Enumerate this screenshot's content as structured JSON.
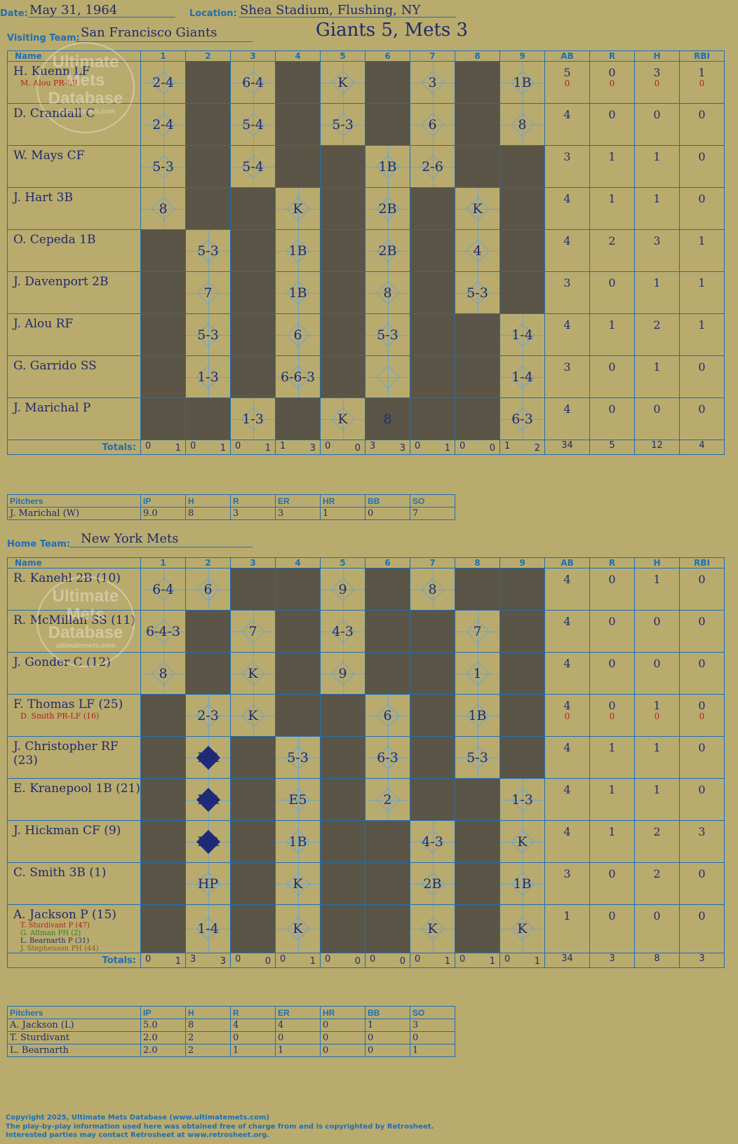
{
  "header": {
    "date_label": "Date:",
    "date": "May 31, 1964",
    "location_label": "Location:",
    "location": "Shea Stadium, Flushing, NY",
    "result": "Giants 5, Mets 3"
  },
  "visiting": {
    "team_label": "Visiting Team:",
    "team": "San Francisco Giants",
    "columns": [
      "Name",
      "1",
      "2",
      "3",
      "4",
      "5",
      "6",
      "7",
      "8",
      "9",
      "AB",
      "R",
      "H",
      "RBI"
    ],
    "players": [
      {
        "name": "H. Kuenn LF",
        "sub": "M. Alou PR-LF",
        "innings": [
          "2-4",
          "",
          "6-4",
          "",
          "K",
          "",
          "3",
          "",
          "1B"
        ],
        "dark": [
          2,
          4,
          6,
          8
        ],
        "stats": [
          "5",
          "0",
          "3",
          "1"
        ],
        "sub_stats": [
          "0",
          "0",
          "0",
          "0"
        ]
      },
      {
        "name": "D. Crandall C",
        "sub": "",
        "innings": [
          "2-4",
          "",
          "5-4",
          "",
          "5-3",
          "",
          "6",
          "",
          "8"
        ],
        "dark": [
          2,
          4,
          6,
          8
        ],
        "stats": [
          "4",
          "0",
          "0",
          "0"
        ]
      },
      {
        "name": "W. Mays CF",
        "sub": "",
        "innings": [
          "5-3",
          "",
          "5-4",
          "",
          "",
          "1B",
          "2-6",
          "",
          ""
        ],
        "dark": [
          2,
          4,
          5,
          8,
          9
        ],
        "stats": [
          "3",
          "1",
          "1",
          "0"
        ]
      },
      {
        "name": "J. Hart 3B",
        "sub": "",
        "innings": [
          "8",
          "",
          "",
          "K",
          "",
          "2B",
          "",
          "K",
          ""
        ],
        "dark": [
          2,
          3,
          5,
          7,
          9
        ],
        "stats": [
          "4",
          "1",
          "1",
          "0"
        ]
      },
      {
        "name": "O. Cepeda 1B",
        "sub": "",
        "innings": [
          "",
          "5-3",
          "",
          "1B",
          "",
          "2B",
          "",
          "4",
          ""
        ],
        "dark": [
          1,
          3,
          5,
          7,
          9
        ],
        "stats": [
          "4",
          "2",
          "3",
          "1"
        ]
      },
      {
        "name": "J. Davenport 2B",
        "sub": "",
        "innings": [
          "",
          "7",
          "",
          "1B",
          "",
          "8",
          "",
          "5-3",
          ""
        ],
        "dark": [
          1,
          3,
          5,
          7,
          9
        ],
        "stats": [
          "3",
          "0",
          "1",
          "1"
        ]
      },
      {
        "name": "J. Alou RF",
        "sub": "",
        "innings": [
          "",
          "5-3",
          "",
          "6",
          "",
          "5-3",
          "",
          "",
          "1-4"
        ],
        "dark": [
          1,
          3,
          5,
          7,
          8
        ],
        "stats": [
          "4",
          "1",
          "2",
          "1"
        ]
      },
      {
        "name": "G. Garrido SS",
        "sub": "",
        "innings": [
          "",
          "1-3",
          "",
          "6-6-3",
          "",
          "",
          "",
          "",
          "1-4"
        ],
        "dark": [
          1,
          3,
          5,
          7,
          8
        ],
        "stats": [
          "3",
          "0",
          "1",
          "0"
        ]
      },
      {
        "name": "J. Marichal P",
        "sub": "",
        "innings": [
          "",
          "",
          "1-3",
          "",
          "K",
          "8",
          "",
          "",
          "6-3"
        ],
        "dark": [
          1,
          2,
          4,
          6,
          7,
          8
        ],
        "stats": [
          "4",
          "0",
          "0",
          "0"
        ]
      }
    ],
    "totals_label": "Totals:",
    "totals": [
      [
        "0",
        "1"
      ],
      [
        "0",
        "1"
      ],
      [
        "0",
        "1"
      ],
      [
        "1",
        "3"
      ],
      [
        "0",
        "0"
      ],
      [
        "3",
        "3"
      ],
      [
        "0",
        "1"
      ],
      [
        "0",
        "0"
      ],
      [
        "1",
        "2"
      ]
    ],
    "totals_stats": [
      "34",
      "5",
      "12",
      "4"
    ],
    "pitch_cols": [
      "Pitchers",
      "IP",
      "H",
      "R",
      "ER",
      "HR",
      "BB",
      "SO"
    ],
    "pitchers": [
      [
        "J. Marichal (W)",
        "9.0",
        "8",
        "3",
        "3",
        "1",
        "0",
        "7"
      ]
    ]
  },
  "home": {
    "team_label": "Home Team:",
    "team": "New York Mets",
    "columns": [
      "Name",
      "1",
      "2",
      "3",
      "4",
      "5",
      "6",
      "7",
      "8",
      "9",
      "AB",
      "R",
      "H",
      "RBI"
    ],
    "players": [
      {
        "name": "R. Kanehl 2B (10)",
        "sub": "",
        "innings": [
          "6-4",
          "6",
          "",
          "",
          "9",
          "",
          "8",
          "",
          ""
        ],
        "dark": [
          3,
          4,
          6,
          8,
          9
        ],
        "stats": [
          "4",
          "0",
          "1",
          "0"
        ]
      },
      {
        "name": "R. McMillan SS (11)",
        "sub": "",
        "innings": [
          "6-4-3",
          "",
          "7",
          "",
          "4-3",
          "",
          "",
          "7",
          ""
        ],
        "dark": [
          2,
          4,
          6,
          7,
          9
        ],
        "stats": [
          "4",
          "0",
          "0",
          "0"
        ]
      },
      {
        "name": "J. Gonder C (12)",
        "sub": "",
        "innings": [
          "8",
          "",
          "K",
          "",
          "9",
          "",
          "",
          "1",
          ""
        ],
        "dark": [
          2,
          4,
          6,
          7,
          9
        ],
        "stats": [
          "4",
          "0",
          "0",
          "0"
        ]
      },
      {
        "name": "F. Thomas LF (25)",
        "sub": "D. Smith PR-LF (16)",
        "innings": [
          "",
          "2-3",
          "K",
          "",
          "",
          "6",
          "",
          "1B",
          ""
        ],
        "dark": [
          1,
          4,
          5,
          7,
          9
        ],
        "stats": [
          "4",
          "0",
          "1",
          "0"
        ],
        "sub_stats": [
          "0",
          "0",
          "0",
          "0"
        ]
      },
      {
        "name": "J. Christopher RF (23)",
        "sub": "",
        "innings": [
          "",
          "HR",
          "",
          "5-3",
          "",
          "6-3",
          "",
          "5-3",
          ""
        ],
        "dark": [
          1,
          3,
          5,
          7,
          9
        ],
        "stats": [
          "4",
          "1",
          "1",
          "0"
        ]
      },
      {
        "name": "E. Kranepool 1B (21)",
        "sub": "",
        "innings": [
          "",
          "HR",
          "",
          "E5",
          "",
          "2",
          "",
          "",
          "1-3"
        ],
        "dark": [
          1,
          3,
          5,
          7,
          8
        ],
        "stats": [
          "4",
          "1",
          "1",
          "0"
        ]
      },
      {
        "name": "J. Hickman CF (9)",
        "sub": "",
        "innings": [
          "",
          "HR",
          "",
          "1B",
          "",
          "",
          "4-3",
          "",
          "K"
        ],
        "dark": [
          1,
          3,
          5,
          6,
          8
        ],
        "stats": [
          "4",
          "1",
          "2",
          "3"
        ]
      },
      {
        "name": "C. Smith 3B (1)",
        "sub": "",
        "innings": [
          "",
          "HP",
          "",
          "K",
          "",
          "",
          "2B",
          "",
          "1B"
        ],
        "dark": [
          1,
          3,
          5,
          6,
          8
        ],
        "stats": [
          "3",
          "0",
          "2",
          "0"
        ]
      },
      {
        "name": "A. Jackson P (15)",
        "subs": [
          "T. Sturdivant P (47)",
          "G. Altman PH (2)",
          "L. Bearnarth P (31)",
          "J. Stephenson PH (44)"
        ],
        "innings": [
          "",
          "1-4",
          "",
          "K",
          "",
          "",
          "K",
          "",
          "K"
        ],
        "dark": [
          1,
          3,
          5,
          6,
          8
        ],
        "stats": [
          "1",
          "0",
          "0",
          "0"
        ]
      }
    ],
    "totals_label": "Totals:",
    "totals": [
      [
        "0",
        "1"
      ],
      [
        "3",
        "3"
      ],
      [
        "0",
        "0"
      ],
      [
        "0",
        "1"
      ],
      [
        "0",
        "0"
      ],
      [
        "0",
        "0"
      ],
      [
        "0",
        "1"
      ],
      [
        "0",
        "1"
      ],
      [
        "0",
        "1"
      ]
    ],
    "totals_stats": [
      "34",
      "3",
      "8",
      "3"
    ],
    "pitch_cols": [
      "Pitchers",
      "IP",
      "H",
      "R",
      "ER",
      "HR",
      "BB",
      "SO"
    ],
    "pitchers": [
      [
        "A. Jackson (L)",
        "5.0",
        "8",
        "4",
        "4",
        "0",
        "1",
        "3"
      ],
      [
        "T. Sturdivant",
        "2.0",
        "2",
        "0",
        "0",
        "0",
        "0",
        "0"
      ],
      [
        "L. Bearnarth",
        "2.0",
        "2",
        "1",
        "1",
        "0",
        "0",
        "1"
      ]
    ]
  },
  "logo": {
    "line1": "Ultimate",
    "line2": "Mets",
    "line3": "Database",
    "line4": "ultimatemets.com"
  },
  "footer": {
    "line1": "Copyright 2025, Ultimate Mets Database (www.ultimatemets.com)",
    "line2": "The play-by-play information used here was obtained free of charge from and is copyrighted by Retrosheet.",
    "line3": "Interested parties may contact Retrosheet at www.retrosheet.org."
  },
  "colors": {
    "background": "#b9ab6e",
    "grid": "#1f6fb3",
    "dark_cell": "#5a5546",
    "ink": "#1e2a6e",
    "sub_ink": "#b3201b"
  }
}
